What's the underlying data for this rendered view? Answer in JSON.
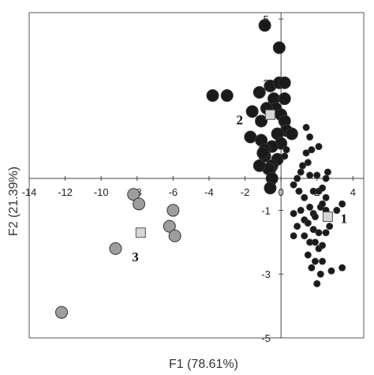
{
  "chart_data": {
    "type": "scatter",
    "xlabel": "F1 (78.61%)",
    "ylabel": "F2 (21.39%)",
    "xlim": [
      -14,
      4.6
    ],
    "ylim": [
      -5,
      5.2
    ],
    "x_ticks": [
      -14,
      -12,
      -10,
      -8,
      -6,
      -4,
      -2,
      0,
      2,
      4
    ],
    "x_tick_labels": [
      "-14",
      "-12",
      "-10",
      "-8",
      "-6",
      "-4",
      "-2",
      "0",
      "2",
      "4"
    ],
    "y_ticks": [
      5,
      3,
      1,
      -1,
      -3,
      -5
    ],
    "y_tick_labels": [
      "5",
      "3",
      "1",
      "-1",
      "-3",
      "-5"
    ],
    "grid": false,
    "series": [
      {
        "marker": "large-circle",
        "color": "#1a1a1a",
        "points": [
          [
            -0.9,
            4.8
          ],
          [
            -0.1,
            4.1
          ],
          [
            -3.8,
            2.6
          ],
          [
            -3.0,
            2.6
          ],
          [
            -1.2,
            2.7
          ],
          [
            -0.6,
            2.9
          ],
          [
            -0.1,
            3.0
          ],
          [
            0.2,
            3.0
          ],
          [
            -0.4,
            2.5
          ],
          [
            0.2,
            2.5
          ],
          [
            -0.3,
            2.2
          ],
          [
            0.0,
            2.0
          ],
          [
            0.2,
            1.8
          ],
          [
            -1.6,
            2.1
          ],
          [
            -1.1,
            1.8
          ],
          [
            -0.8,
            2.2
          ],
          [
            0.3,
            1.5
          ],
          [
            0.6,
            1.4
          ],
          [
            -1.7,
            1.3
          ],
          [
            -1.1,
            1.2
          ],
          [
            -0.2,
            1.4
          ],
          [
            0.0,
            1.1
          ],
          [
            -0.5,
            1.0
          ],
          [
            -0.9,
            0.9
          ],
          [
            -0.9,
            0.7
          ],
          [
            -0.2,
            0.6
          ],
          [
            -0.5,
            0.4
          ],
          [
            -0.6,
            0.3
          ],
          [
            -0.7,
            0.3
          ],
          [
            -1.0,
            0.8
          ],
          [
            -1.2,
            0.4
          ],
          [
            -0.5,
            0.0
          ],
          [
            -0.6,
            -0.3
          ]
        ]
      },
      {
        "marker": "small-circle",
        "color": "#1a1a1a",
        "points": [
          [
            1.6,
            1.3
          ],
          [
            1.4,
            0.8
          ],
          [
            0.2,
            0.7
          ],
          [
            1.2,
            0.4
          ],
          [
            1.6,
            0.1
          ],
          [
            0.7,
            -0.2
          ],
          [
            2.0,
            0.1
          ],
          [
            2.1,
            -0.4
          ],
          [
            2.3,
            -0.3
          ],
          [
            2.5,
            -0.6
          ],
          [
            1.8,
            -0.4
          ],
          [
            1.3,
            -0.6
          ],
          [
            1.6,
            -0.9
          ],
          [
            1.8,
            -1.1
          ],
          [
            2.2,
            -0.9
          ],
          [
            1.1,
            -1.0
          ],
          [
            1.9,
            -1.2
          ],
          [
            2.6,
            -1.2
          ],
          [
            3.1,
            -1.0
          ],
          [
            3.4,
            -0.8
          ],
          [
            1.3,
            -1.3
          ],
          [
            0.7,
            -1.1
          ],
          [
            0.9,
            -1.5
          ],
          [
            1.5,
            -1.4
          ],
          [
            1.8,
            -1.6
          ],
          [
            2.1,
            -1.7
          ],
          [
            2.5,
            -1.7
          ],
          [
            2.7,
            -1.5
          ],
          [
            1.3,
            -1.8
          ],
          [
            0.7,
            -1.8
          ],
          [
            1.6,
            -2.0
          ],
          [
            1.9,
            -2.0
          ],
          [
            2.1,
            -2.2
          ],
          [
            2.3,
            -2.1
          ],
          [
            1.5,
            -2.4
          ],
          [
            1.9,
            -2.6
          ],
          [
            1.7,
            -2.8
          ],
          [
            2.3,
            -2.6
          ],
          [
            2.8,
            -2.9
          ],
          [
            3.4,
            -2.8
          ],
          [
            2.2,
            -3.0
          ],
          [
            2.0,
            -3.3
          ],
          [
            2.5,
            -1.0
          ],
          [
            2.3,
            -0.8
          ],
          [
            2.6,
            0.2
          ],
          [
            2.5,
            0.0
          ],
          [
            1.5,
            0.5
          ],
          [
            1.7,
            0.9
          ],
          [
            1.4,
            1.6
          ],
          [
            2.1,
            1.0
          ],
          [
            0.3,
            0.9
          ],
          [
            1.0,
            -0.4
          ],
          [
            0.9,
            0.0
          ],
          [
            1.1,
            0.2
          ]
        ]
      },
      {
        "marker": "large-circle",
        "color": "#9e9e9e",
        "points": [
          [
            -8.2,
            -0.5
          ],
          [
            -7.9,
            -0.8
          ],
          [
            -6.0,
            -1.0
          ],
          [
            -6.2,
            -1.5
          ],
          [
            -5.9,
            -1.8
          ],
          [
            -9.2,
            -2.2
          ],
          [
            -12.2,
            -4.2
          ]
        ]
      },
      {
        "marker": "square",
        "color": "#d6d6d6",
        "points": [
          [
            -0.6,
            2.0
          ],
          [
            2.6,
            -1.2
          ],
          [
            -7.8,
            -1.7
          ]
        ]
      }
    ],
    "annotations": [
      {
        "text": "1",
        "x": 3.5,
        "y": -1.4
      },
      {
        "text": "2",
        "x": -2.3,
        "y": 1.7
      },
      {
        "text": "3",
        "x": -8.1,
        "y": -2.6
      }
    ]
  }
}
